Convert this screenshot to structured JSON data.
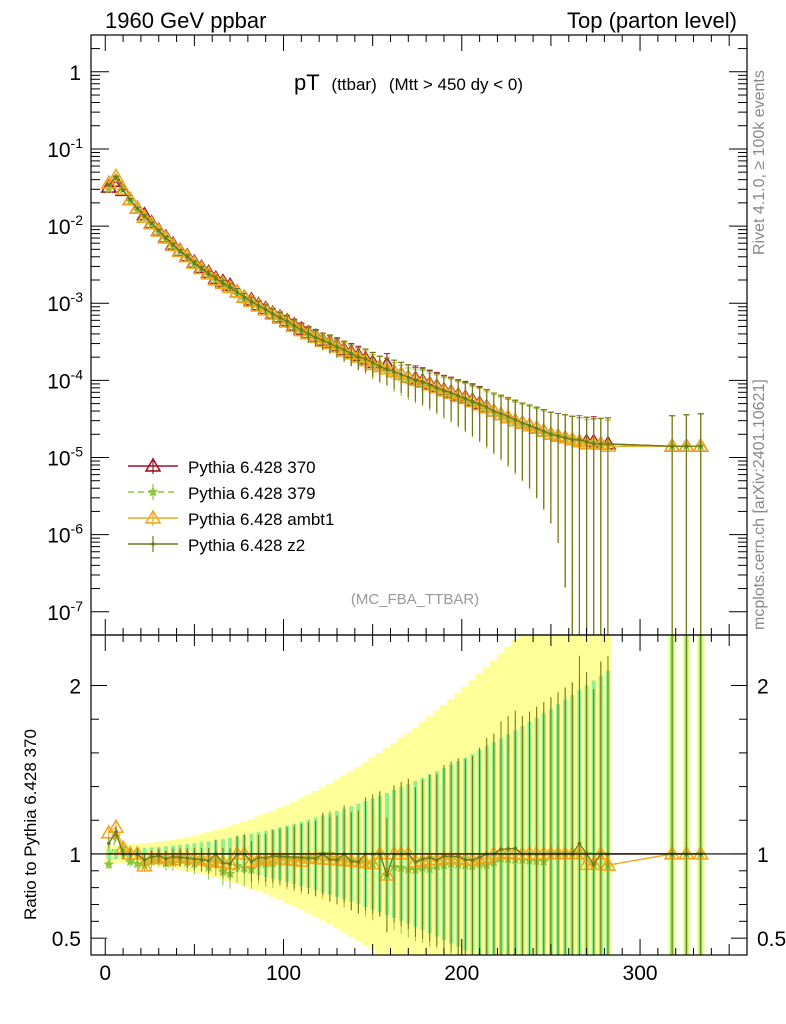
{
  "header": {
    "left": "1960 GeV ppbar",
    "right": "Top (parton level)",
    "side_label": "Rivet 4.1.0, ≥ 100k events",
    "side_label_2": "mcplots.cern.ch [arXiv:2401.10621]",
    "watermark": "(MC_FBA_TTBAR)"
  },
  "chart_data": {
    "type": "line",
    "title_main": "pT",
    "title_sub": "(ttbar)",
    "title_cut": "(Mtt > 450 dy < 0)",
    "xlabel": "",
    "ylabel_main": "",
    "ylabel_ratio": "Ratio to Pythia 6.428 370",
    "xlim": [
      -8,
      360
    ],
    "ylim_main": [
      5e-08,
      3
    ],
    "ylim_ratio": [
      0.4,
      2.3
    ],
    "x_ticks": [
      0,
      100,
      200,
      300
    ],
    "x_tick_labels": [
      "0",
      "100",
      "200",
      "300"
    ],
    "y_ticks_main": [
      {
        "base": "10",
        "exp": "-7",
        "value": 1e-07
      },
      {
        "base": "10",
        "exp": "-6",
        "value": 1e-06
      },
      {
        "base": "10",
        "exp": "-5",
        "value": 1e-05
      },
      {
        "base": "10",
        "exp": "-4",
        "value": 0.0001
      },
      {
        "base": "10",
        "exp": "-3",
        "value": 0.001
      },
      {
        "base": "10",
        "exp": "-2",
        "value": 0.01
      },
      {
        "base": "10",
        "exp": "-1",
        "value": 0.1
      },
      {
        "base": "1",
        "exp": "",
        "value": 1
      }
    ],
    "y_ticks_ratio": [
      {
        "label": "0.5",
        "value": 0.5
      },
      {
        "label": "1",
        "value": 1
      },
      {
        "label": "2",
        "value": 2
      }
    ],
    "series": [
      {
        "name": "Pythia 6.428 370",
        "color": "#a0142a",
        "marker": "triangle",
        "dash": "",
        "x": [
          2,
          6,
          10,
          14,
          18,
          22,
          26,
          30,
          34,
          38,
          42,
          46,
          50,
          54,
          58,
          62,
          66,
          70,
          74,
          78,
          82,
          86,
          90,
          94,
          98,
          102,
          106,
          110,
          114,
          118,
          122,
          126,
          130,
          134,
          138,
          142,
          146,
          150,
          154,
          158,
          162,
          166,
          170,
          174,
          178,
          182,
          186,
          190,
          194,
          198,
          202,
          206,
          210,
          214,
          218,
          222,
          226,
          230,
          234,
          238,
          242,
          246,
          250,
          254,
          258,
          262,
          266,
          270,
          274,
          278,
          282,
          318,
          326,
          334
        ],
        "y": [
          0.032,
          0.038,
          0.029,
          0.022,
          0.017,
          0.014,
          0.011,
          0.0088,
          0.0072,
          0.0058,
          0.0048,
          0.0041,
          0.0034,
          0.0029,
          0.0025,
          0.0021,
          0.0019,
          0.0017,
          0.0014,
          0.0012,
          0.0011,
          0.00095,
          0.00085,
          0.00074,
          0.00066,
          0.00059,
          0.00052,
          0.00046,
          0.00041,
          0.00037,
          0.00033,
          0.00031,
          0.00028,
          0.00025,
          0.00023,
          0.00021,
          0.00019,
          0.00017,
          0.00015,
          0.00016,
          0.00013,
          0.00012,
          0.00011,
          0.000105,
          9.8e-05,
          9e-05,
          8.3e-05,
          7.5e-05,
          7e-05,
          6.4e-05,
          6e-05,
          5.5e-05,
          5e-05,
          4.5e-05,
          4e-05,
          3.6e-05,
          3.3e-05,
          3e-05,
          2.8e-05,
          2.6e-05,
          2.4e-05,
          2.2e-05,
          2e-05,
          1.9e-05,
          1.8e-05,
          1.7e-05,
          1.6e-05,
          1.6e-05,
          1.6e-05,
          1.5e-05,
          1.5e-05,
          1.4e-05,
          1.4e-05,
          1.4e-05
        ]
      },
      {
        "name": "Pythia 6.428 379",
        "color": "#8cc63f",
        "marker": "star",
        "dash": "6,4",
        "x": [
          2,
          6,
          10,
          14,
          18,
          22,
          26,
          30,
          34,
          38,
          42,
          46,
          50,
          54,
          58,
          62,
          66,
          70,
          74,
          78,
          82,
          86,
          90,
          94,
          98,
          102,
          106,
          110,
          114,
          118,
          122,
          126,
          130,
          134,
          138,
          142,
          146,
          150,
          154,
          158,
          162,
          166,
          170,
          174,
          178,
          182,
          186,
          190,
          194,
          198,
          202,
          206,
          210,
          214,
          218,
          222,
          226,
          230,
          234,
          238,
          242,
          246,
          250,
          254,
          258,
          262,
          266,
          270,
          274,
          278,
          282,
          318,
          326,
          334
        ],
        "y": [
          0.03,
          0.042,
          0.03,
          0.021,
          0.016,
          0.013,
          0.0105,
          0.0085,
          0.0068,
          0.0055,
          0.0047,
          0.0039,
          0.0032,
          0.0028,
          0.0023,
          0.002,
          0.0017,
          0.0015,
          0.0013,
          0.0011,
          0.001,
          0.0009,
          0.0008,
          0.0007,
          0.00065,
          0.00057,
          0.0005,
          0.00045,
          0.0004,
          0.00036,
          0.00033,
          0.00031,
          0.00027,
          0.00024,
          0.00022,
          0.0002,
          0.00018,
          0.00016,
          0.00015,
          0.00014,
          0.00012,
          0.00011,
          0.0001,
          9.5e-05,
          9e-05,
          8.2e-05,
          7.7e-05,
          7e-05,
          6.6e-05,
          6e-05,
          5.6e-05,
          5.1e-05,
          4.7e-05,
          4.2e-05,
          3.8e-05,
          3.5e-05,
          3.2e-05,
          2.9e-05,
          2.7e-05,
          2.5e-05,
          2.3e-05,
          2.1e-05,
          2e-05,
          1.9e-05,
          1.8e-05,
          1.7e-05,
          1.6e-05,
          1.6e-05,
          1.5e-05,
          1.5e-05,
          1.4e-05,
          1.4e-05,
          1.4e-05,
          1.4e-05
        ]
      },
      {
        "name": "Pythia 6.428 ambt1",
        "color": "#f2a81d",
        "marker": "triangle",
        "dash": "",
        "x": [
          2,
          6,
          10,
          14,
          18,
          22,
          26,
          30,
          34,
          38,
          42,
          46,
          50,
          54,
          58,
          62,
          66,
          70,
          74,
          78,
          82,
          86,
          90,
          94,
          98,
          102,
          106,
          110,
          114,
          118,
          122,
          126,
          130,
          134,
          138,
          142,
          146,
          150,
          154,
          158,
          162,
          166,
          170,
          174,
          178,
          182,
          186,
          190,
          194,
          198,
          202,
          206,
          210,
          214,
          218,
          222,
          226,
          230,
          234,
          238,
          242,
          246,
          250,
          254,
          258,
          262,
          266,
          270,
          274,
          278,
          282,
          318,
          326,
          334
        ],
        "y": [
          0.036,
          0.044,
          0.03,
          0.022,
          0.017,
          0.013,
          0.0107,
          0.0086,
          0.007,
          0.0056,
          0.0047,
          0.004,
          0.0033,
          0.0028,
          0.0024,
          0.002,
          0.0018,
          0.0016,
          0.0014,
          0.0012,
          0.00105,
          0.00092,
          0.00082,
          0.00072,
          0.00064,
          0.00057,
          0.0005,
          0.00044,
          0.0004,
          0.00036,
          0.00032,
          0.0003,
          0.00027,
          0.00024,
          0.00022,
          0.0002,
          0.00018,
          0.00016,
          0.00015,
          0.00014,
          0.00013,
          0.00012,
          0.00011,
          0.0001,
          9.4e-05,
          8.7e-05,
          8e-05,
          7.3e-05,
          6.8e-05,
          6.2e-05,
          5.8e-05,
          5.3e-05,
          4.8e-05,
          4.4e-05,
          4e-05,
          3.6e-05,
          3.3e-05,
          3e-05,
          2.8e-05,
          2.6e-05,
          2.4e-05,
          2.2e-05,
          2e-05,
          1.9e-05,
          1.8e-05,
          1.7e-05,
          1.6e-05,
          1.5e-05,
          1.5e-05,
          1.5e-05,
          1.4e-05,
          1.4e-05,
          1.4e-05,
          1.4e-05
        ]
      },
      {
        "name": "Pythia 6.428 z2",
        "color": "#6b7a1a",
        "marker": "dot",
        "dash": "",
        "x": [
          2,
          6,
          10,
          14,
          18,
          22,
          26,
          30,
          34,
          38,
          42,
          46,
          50,
          54,
          58,
          62,
          66,
          70,
          74,
          78,
          82,
          86,
          90,
          94,
          98,
          102,
          106,
          110,
          114,
          118,
          122,
          126,
          130,
          134,
          138,
          142,
          146,
          150,
          154,
          158,
          162,
          166,
          170,
          174,
          178,
          182,
          186,
          190,
          194,
          198,
          202,
          206,
          210,
          214,
          218,
          222,
          226,
          230,
          234,
          238,
          242,
          246,
          250,
          254,
          258,
          262,
          266,
          270,
          274,
          278,
          282,
          318,
          326,
          334
        ],
        "y": [
          0.034,
          0.043,
          0.029,
          0.022,
          0.017,
          0.0135,
          0.0108,
          0.0087,
          0.007,
          0.0057,
          0.0047,
          0.004,
          0.0033,
          0.0028,
          0.0024,
          0.0021,
          0.0018,
          0.0016,
          0.0014,
          0.0012,
          0.00105,
          0.00093,
          0.00083,
          0.00073,
          0.00065,
          0.00058,
          0.00051,
          0.00045,
          0.0004,
          0.00036,
          0.00033,
          0.0003,
          0.00027,
          0.00025,
          0.00022,
          0.0002,
          0.00019,
          0.00017,
          0.00015,
          0.00014,
          0.00013,
          0.00012,
          0.00011,
          0.0001,
          9.5e-05,
          8.8e-05,
          8e-05,
          7.4e-05,
          6.9e-05,
          6.3e-05,
          5.8e-05,
          5.3e-05,
          4.9e-05,
          4.5e-05,
          4e-05,
          3.7e-05,
          3.4e-05,
          3.1e-05,
          2.8e-05,
          2.6e-05,
          2.4e-05,
          2.2e-05,
          2e-05,
          1.9e-05,
          1.8e-05,
          1.7e-05,
          1.7e-05,
          1.6e-05,
          1.5e-05,
          1.5e-05,
          1.5e-05,
          1.4e-05,
          1.4e-05,
          1.4e-05
        ]
      }
    ]
  }
}
